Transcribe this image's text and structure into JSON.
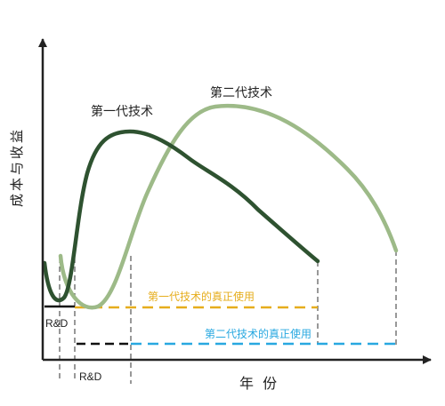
{
  "labels": {
    "y_axis": "成本与收益",
    "x_axis": "年  份",
    "gen1_curve": "第一代技术",
    "gen2_curve": "第二代技术",
    "gen1_real_use": "第一代技术的真正使用",
    "gen2_real_use": "第二代技术的真正使用",
    "rd_first": "R&D",
    "rd_second": "R&D"
  },
  "colors": {
    "axis": "#222222",
    "gen1_curve": "#2e5230",
    "gen2_curve": "#9dba88",
    "gen1_real_use_line": "#e6ad1c",
    "gen2_real_use_line": "#28a8e0",
    "rd_line": "#111111",
    "guide": "#555555"
  }
}
